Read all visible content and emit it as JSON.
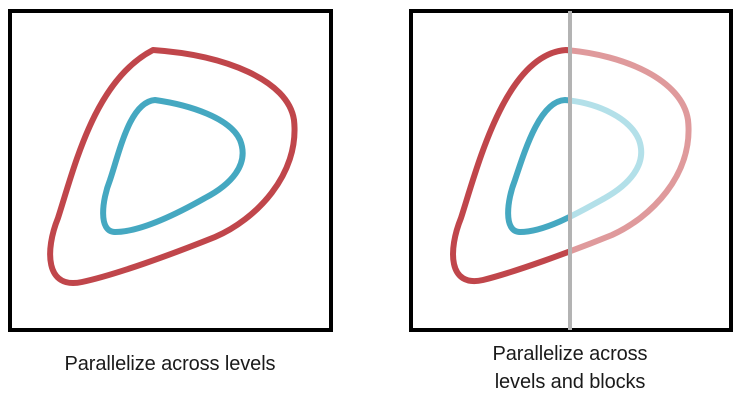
{
  "panels": [
    {
      "caption_lines": [
        "Parallelize across levels"
      ]
    },
    {
      "caption_lines": [
        "Parallelize across",
        "levels and blocks"
      ]
    }
  ],
  "colors": {
    "frame": "#000000",
    "outer_contour": "#c0464b",
    "inner_contour": "#45a8c1",
    "outer_contour_faded": "#df9a9c",
    "inner_contour_faded": "#b3e0e9",
    "divider": "#b3b3b3"
  }
}
